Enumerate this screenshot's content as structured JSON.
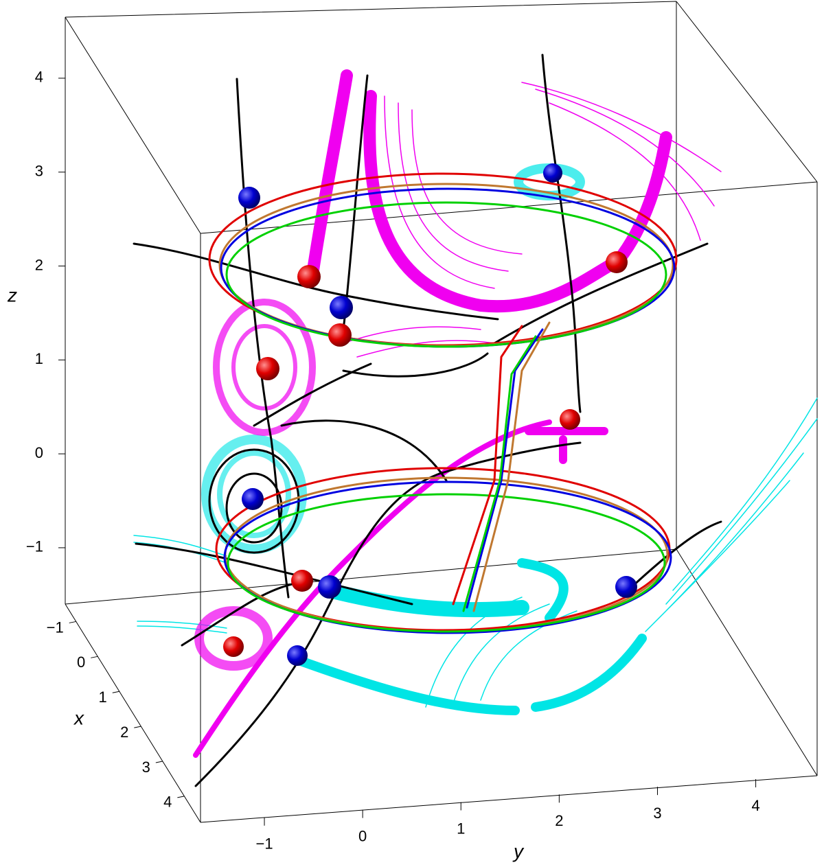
{
  "chart_data": {
    "type": "box3d",
    "xlabel": "x",
    "ylabel": "y",
    "zlabel": "z",
    "xlim": [
      -1.5,
      4.75
    ],
    "ylim": [
      -1.65,
      4.45
    ],
    "zlim": [
      -1.6,
      4.65
    ],
    "xticks": [
      {
        "value": -1,
        "label": "−1"
      },
      0,
      1,
      2,
      3,
      4
    ],
    "yticks": [
      {
        "value": -1,
        "label": "−1"
      },
      0,
      1,
      2,
      3,
      4
    ],
    "zticks": [
      {
        "value": -1,
        "label": "−1"
      },
      0,
      1,
      2,
      3,
      4
    ]
  }
}
